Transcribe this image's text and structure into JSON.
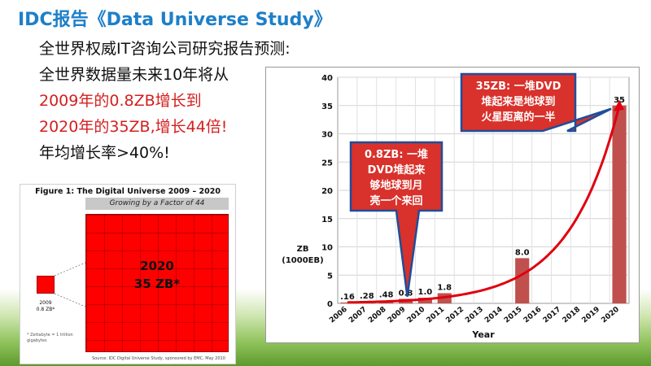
{
  "slide": {
    "title": "IDC报告《Data Universe Study》",
    "lines": [
      {
        "text": "全世界权威IT咨询公司研究报告预测:",
        "color": "black"
      },
      {
        "text": "全世界数据量未来10年将从",
        "color": "black"
      },
      {
        "text": "2009年的0.8ZB增长到",
        "color": "red"
      },
      {
        "text": "2020年的35ZB,增长44倍!",
        "color": "red"
      },
      {
        "text": "年均增长率>40%!",
        "color": "black"
      }
    ]
  },
  "figure": {
    "title": "Figure 1:  The Digital Universe 2009 – 2020",
    "subtitle": "Growing by a Factor of 44",
    "big_label_line1": "2020",
    "big_label_line2": "35 ZB*",
    "small_label_line1": "2009",
    "small_label_line2": "0.8 ZB*",
    "note": "* Zettabyte = 1 trillion gigabytes",
    "source": "Source: IDC Digital Universe Study, sponsored by EMC, May 2010"
  },
  "colors": {
    "title_blue": "#1e7fc8",
    "text_red": "#d41f1f",
    "bar": "#c0504d",
    "curve": "#e0000f",
    "callout_fill": "#d9312b",
    "callout_border": "#1f4e9a"
  },
  "chart_data": {
    "type": "bar",
    "categories": [
      "2006",
      "2007",
      "2008",
      "2009",
      "2010",
      "2011",
      "2012",
      "2013",
      "2014",
      "2015",
      "2016",
      "2017",
      "2018",
      "2019",
      "2020"
    ],
    "values": [
      0.16,
      0.28,
      0.48,
      0.8,
      1.0,
      1.8,
      null,
      null,
      null,
      8.0,
      null,
      null,
      null,
      null,
      35
    ],
    "data_labels": [
      ".16",
      ".28",
      ".48",
      "0.8",
      "1.0",
      "1.8",
      "",
      "",
      "",
      "8.0",
      "",
      "",
      "",
      "",
      "35"
    ],
    "ylim": [
      0,
      40
    ],
    "yticks": [
      0,
      5,
      10,
      15,
      20,
      25,
      30,
      35,
      40
    ],
    "xlabel": "Year",
    "ylabel_line1": "ZB",
    "ylabel_line2": "(1000EB)",
    "grid": true,
    "trend_curve": true,
    "callouts": [
      {
        "lines": [
          "0.8ZB: 一堆",
          "DVD堆起来",
          "够地球到月",
          "亮一个来回"
        ],
        "points_to": "2009"
      },
      {
        "lines": [
          "35ZB: 一堆DVD",
          "堆起来是地球到",
          "火星距离的一半"
        ],
        "points_to": "2020"
      }
    ]
  }
}
